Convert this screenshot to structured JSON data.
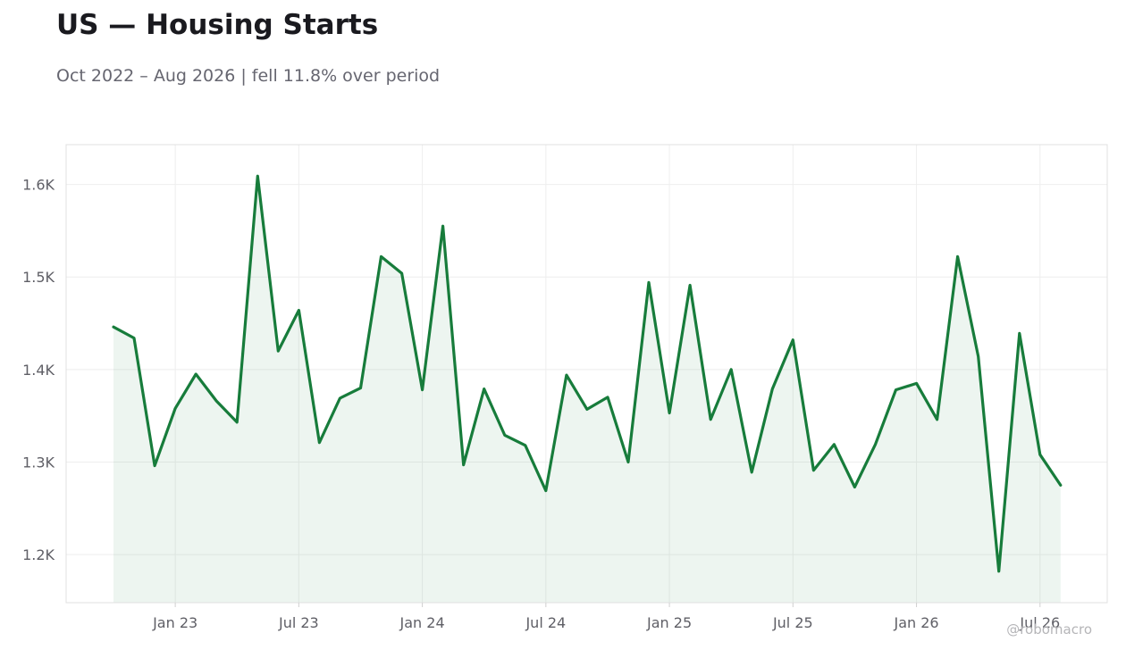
{
  "chart_data": {
    "type": "area",
    "title": "US — Housing Starts",
    "subtitle": "Oct 2022 – Aug 2026 | fell 11.8% over period",
    "xlabel": "",
    "ylabel": "",
    "x": [
      "2022-10",
      "2022-11",
      "2022-12",
      "2023-01",
      "2023-02",
      "2023-03",
      "2023-04",
      "2023-05",
      "2023-06",
      "2023-07",
      "2023-08",
      "2023-09",
      "2023-10",
      "2023-11",
      "2023-12",
      "2024-01",
      "2024-02",
      "2024-03",
      "2024-04",
      "2024-05",
      "2024-06",
      "2024-07",
      "2024-08",
      "2024-09",
      "2024-10",
      "2024-11",
      "2024-12",
      "2025-01",
      "2025-02",
      "2025-03",
      "2025-04",
      "2025-05",
      "2025-06",
      "2025-07",
      "2025-08",
      "2025-09",
      "2025-10",
      "2025-11",
      "2025-12",
      "2026-01",
      "2026-02",
      "2026-03",
      "2026-04",
      "2026-05",
      "2026-06",
      "2026-07",
      "2026-08"
    ],
    "series": [
      {
        "values": [
          1446,
          1434,
          1296,
          1358,
          1395,
          1366,
          1343,
          1609,
          1420,
          1464,
          1321,
          1369,
          1380,
          1522,
          1504,
          1378,
          1555,
          1297,
          1379,
          1329,
          1318,
          1269,
          1394,
          1357,
          1370,
          1300,
          1494,
          1353,
          1491,
          1346,
          1400,
          1289,
          1379,
          1432,
          1291,
          1319,
          1273,
          1319,
          1378,
          1385,
          1346,
          1522,
          1414,
          1182,
          1439,
          1308,
          1275
        ]
      }
    ],
    "x_tick_labels": [
      "Jan 23",
      "Jul 23",
      "Jan 24",
      "Jul 24",
      "Jan 25",
      "Jul 25",
      "Jan 26",
      "Jul 26"
    ],
    "x_tick_dates": [
      "2023-01",
      "2023-07",
      "2024-01",
      "2024-07",
      "2025-01",
      "2025-07",
      "2026-01",
      "2026-07"
    ],
    "y_tick_labels": [
      "1.2K",
      "1.3K",
      "1.4K",
      "1.5K",
      "1.6K"
    ],
    "y_ticks": [
      1200,
      1300,
      1400,
      1500,
      1600
    ],
    "ylim": [
      1148,
      1643
    ],
    "grid": true,
    "legend": "none",
    "colors": {
      "line": "#177c3b",
      "fill": "#177c3b",
      "grid": "#eeeeee",
      "frame": "#e0e0e0"
    }
  },
  "watermark": "@robomacro"
}
